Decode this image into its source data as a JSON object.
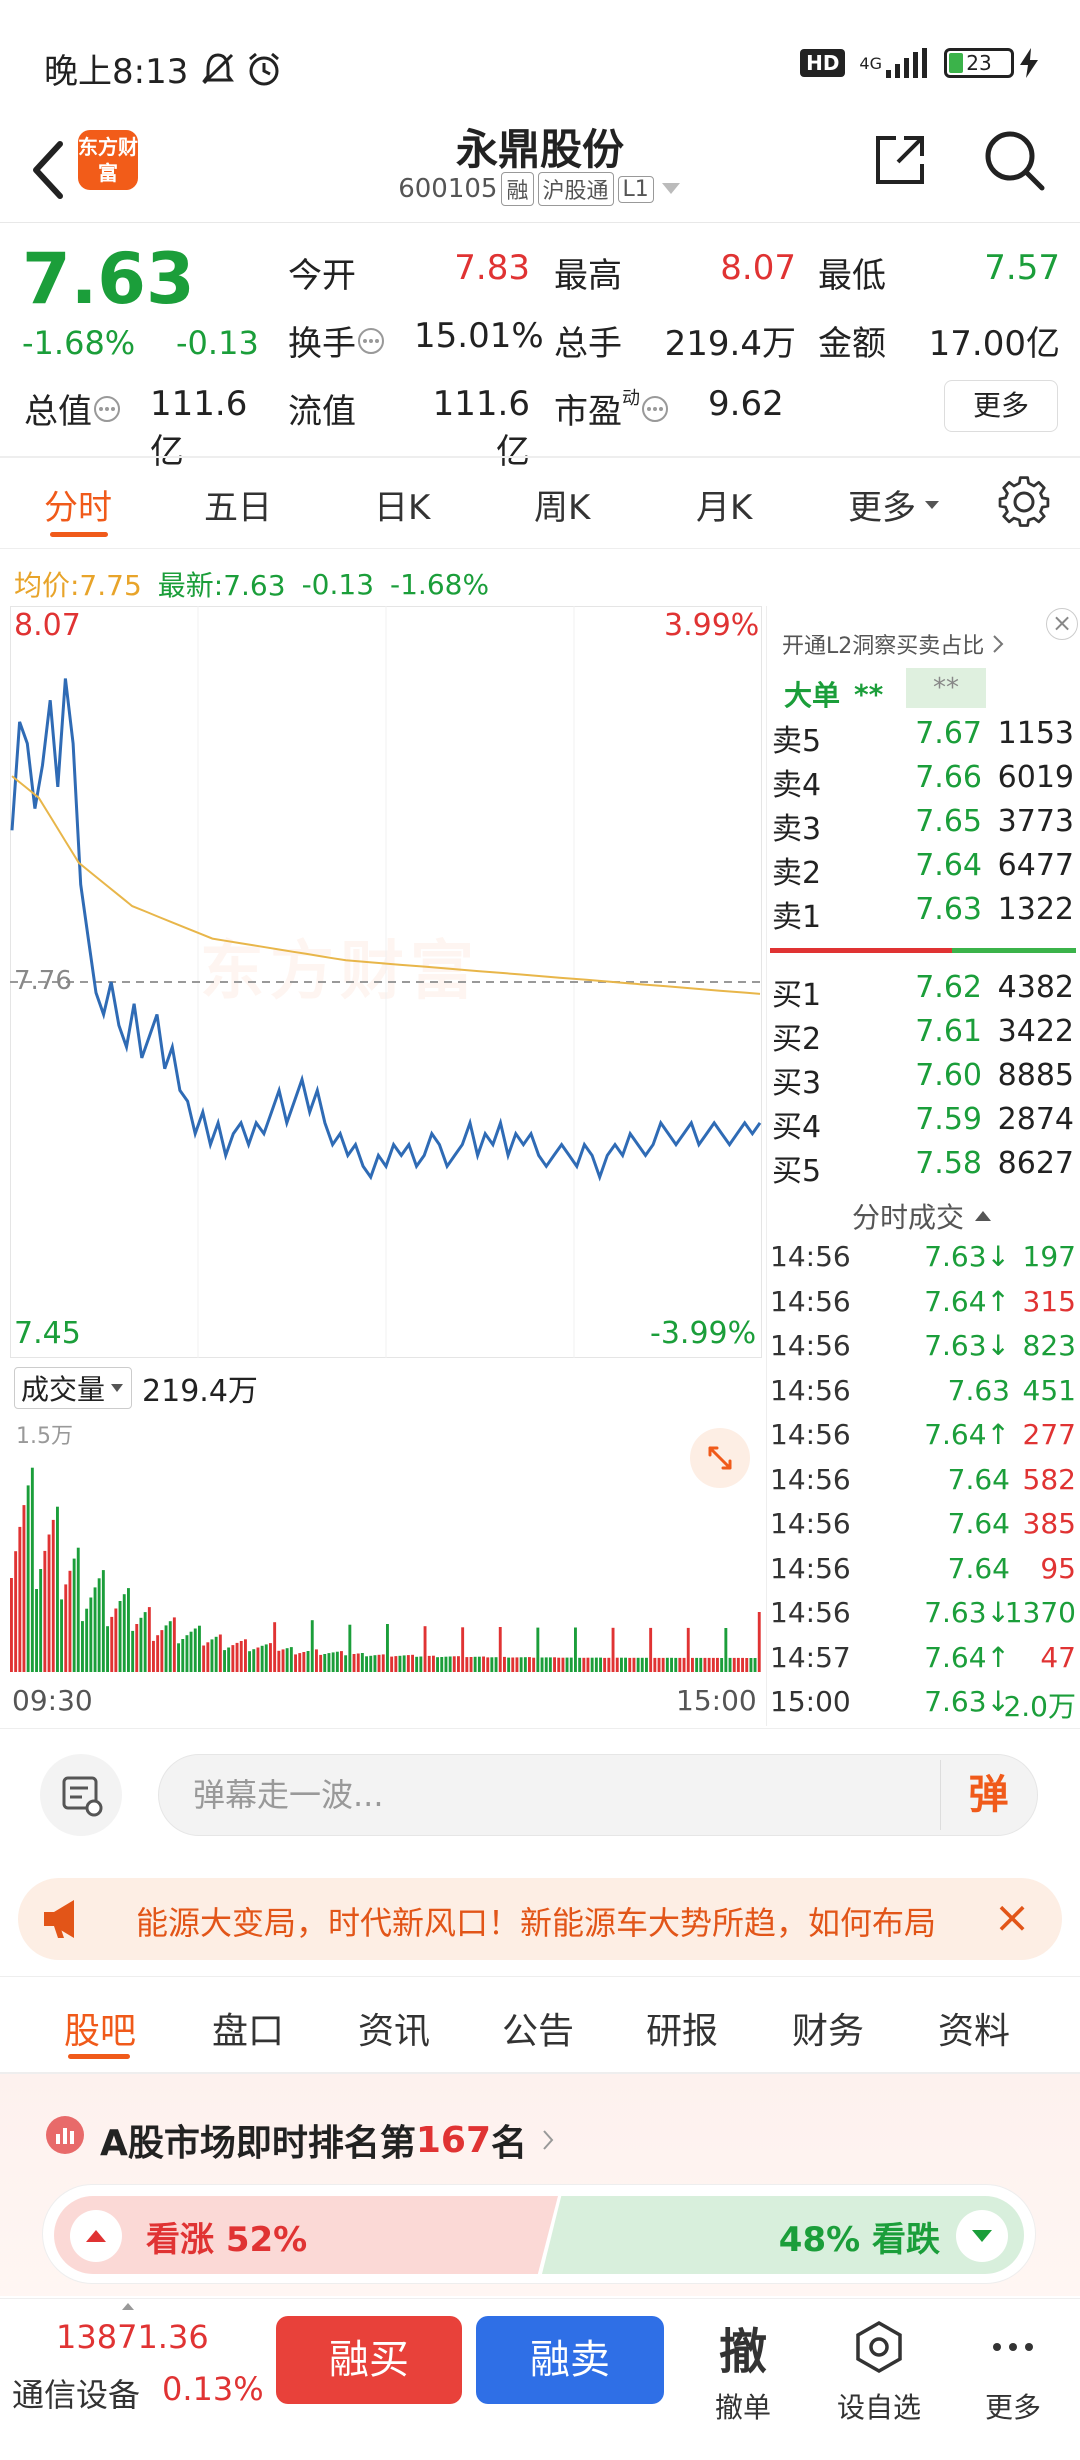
{
  "status_bar": {
    "time": "晚上8:13",
    "network": "4G",
    "hd": "HD",
    "battery": "23",
    "battery_level": 0.23
  },
  "header": {
    "logo": "东方财富",
    "stock_name": "永鼎股份",
    "stock_code": "600105",
    "tags": [
      "融",
      "沪股通",
      "L1"
    ]
  },
  "quote": {
    "price": "7.63",
    "change_pct": "-1.68%",
    "change": "-0.13",
    "fields": [
      {
        "label": "今开",
        "value": "7.83",
        "color": "red"
      },
      {
        "label": "最高",
        "value": "8.07",
        "color": "red"
      },
      {
        "label": "最低",
        "value": "7.57",
        "color": "green"
      },
      {
        "label": "换手",
        "value": "15.01%",
        "color": "black"
      },
      {
        "label": "总手",
        "value": "219.4万",
        "color": "black"
      },
      {
        "label": "金额",
        "value": "17.00亿",
        "color": "black"
      },
      {
        "label": "总值",
        "value": "111.6亿",
        "color": "black"
      },
      {
        "label": "流值",
        "value": "111.6亿",
        "color": "black"
      },
      {
        "label": "市盈",
        "value": "9.62",
        "color": "black"
      }
    ],
    "pe_superscript": "动",
    "more_label": "更多"
  },
  "period_tabs": [
    "分时",
    "五日",
    "日K",
    "周K",
    "月K",
    "更多"
  ],
  "info_line": {
    "avg": "均价:7.75",
    "latest": "最新:7.63",
    "change": "-0.13",
    "change_pct": "-1.68%"
  },
  "chart_data": {
    "type": "line",
    "title": "",
    "xlabel": "",
    "ylabel": "",
    "ylim": [
      7.45,
      8.07
    ],
    "prev_close": "7.76",
    "y_top_label": "8.07",
    "y_bottom_label": "7.45",
    "pct_top_label": "3.99%",
    "pct_bottom_label": "-3.99%",
    "x_start_label": "09:30",
    "x_end_label": "15:00",
    "watermark": "东方财富",
    "series": [
      {
        "values": [
          7.9,
          8.0,
          7.98,
          7.92,
          7.96,
          8.02,
          7.94,
          8.04,
          7.98,
          7.85,
          7.8,
          7.75,
          7.73,
          7.76,
          7.72,
          7.7,
          7.74,
          7.69,
          7.71,
          7.73,
          7.68,
          7.7,
          7.66,
          7.65,
          7.62,
          7.64,
          7.61,
          7.63,
          7.6,
          7.62,
          7.63,
          7.61,
          7.63,
          7.62,
          7.64,
          7.66,
          7.63,
          7.65,
          7.67,
          7.64,
          7.66,
          7.63,
          7.61,
          7.62,
          7.6,
          7.61,
          7.59,
          7.58,
          7.6,
          7.59,
          7.61,
          7.6,
          7.61,
          7.59,
          7.6,
          7.62,
          7.61,
          7.59,
          7.6,
          7.61,
          7.63,
          7.6,
          7.62,
          7.61,
          7.63,
          7.6,
          7.62,
          7.61,
          7.62,
          7.6,
          7.59,
          7.6,
          7.61,
          7.6,
          7.59,
          7.61,
          7.6,
          7.58,
          7.6,
          7.61,
          7.6,
          7.62,
          7.61,
          7.6,
          7.61,
          7.63,
          7.62,
          7.61,
          7.62,
          7.63,
          7.61,
          7.62,
          7.63,
          7.62,
          7.61,
          7.62,
          7.63,
          7.62,
          7.63
        ]
      },
      {
        "values": [
          7.95,
          7.94,
          7.93,
          7.91,
          7.89,
          7.87,
          7.86,
          7.85,
          7.84,
          7.83,
          7.825,
          7.82,
          7.815,
          7.81,
          7.805,
          7.8,
          7.798,
          7.796,
          7.794,
          7.792,
          7.79,
          7.788,
          7.786,
          7.784,
          7.782,
          7.78,
          7.779,
          7.778,
          7.777,
          7.776,
          7.775,
          7.774,
          7.773,
          7.772,
          7.771,
          7.77,
          7.769,
          7.768,
          7.767,
          7.766,
          7.765,
          7.764,
          7.763,
          7.762,
          7.761,
          7.76,
          7.759,
          7.758,
          7.757,
          7.756,
          7.755,
          7.754,
          7.753,
          7.752,
          7.751,
          7.75,
          7.749
        ]
      }
    ]
  },
  "volume": {
    "label": "成交量",
    "total": "219.4万",
    "max_label": "1.5万"
  },
  "order_book": {
    "title": "开通L2洞察买卖占比",
    "big_order_label": "大单",
    "big_order_value": "**",
    "big_order_box": "**",
    "asks": [
      {
        "label": "卖5",
        "price": "7.67",
        "vol": "1153"
      },
      {
        "label": "卖4",
        "price": "7.66",
        "vol": "6019"
      },
      {
        "label": "卖3",
        "price": "7.65",
        "vol": "3773"
      },
      {
        "label": "卖2",
        "price": "7.64",
        "vol": "6477"
      },
      {
        "label": "卖1",
        "price": "7.63",
        "vol": "1322"
      }
    ],
    "bids": [
      {
        "label": "买1",
        "price": "7.62",
        "vol": "4382"
      },
      {
        "label": "买2",
        "price": "7.61",
        "vol": "3422"
      },
      {
        "label": "买3",
        "price": "7.60",
        "vol": "8885"
      },
      {
        "label": "买4",
        "price": "7.59",
        "vol": "2874"
      },
      {
        "label": "买5",
        "price": "7.58",
        "vol": "8627"
      }
    ],
    "ticks_title": "分时成交",
    "ticks": [
      {
        "time": "14:56",
        "price": "7.63↓",
        "vol": "197",
        "dir": "down"
      },
      {
        "time": "14:56",
        "price": "7.64↑",
        "vol": "315",
        "dir": "up"
      },
      {
        "time": "14:56",
        "price": "7.63↓",
        "vol": "823",
        "dir": "down"
      },
      {
        "time": "14:56",
        "price": "7.63",
        "vol": "451",
        "dir": "down"
      },
      {
        "time": "14:56",
        "price": "7.64↑",
        "vol": "277",
        "dir": "up"
      },
      {
        "time": "14:56",
        "price": "7.64",
        "vol": "582",
        "dir": "up"
      },
      {
        "time": "14:56",
        "price": "7.64",
        "vol": "385",
        "dir": "up"
      },
      {
        "time": "14:56",
        "price": "7.64",
        "vol": "95",
        "dir": "up"
      },
      {
        "time": "14:56",
        "price": "7.63↓",
        "vol": "1370",
        "dir": "down"
      },
      {
        "time": "14:57",
        "price": "7.64↑",
        "vol": "47",
        "dir": "up"
      },
      {
        "time": "15:00",
        "price": "7.63↓",
        "vol": "2.0万",
        "dir": "down"
      }
    ]
  },
  "barrage": {
    "placeholder": "弹幕走一波...",
    "button": "弹"
  },
  "banner": {
    "text": "能源大变局，时代新风口！新能源车大势所趋，如何布局"
  },
  "sub_tabs": [
    "股吧",
    "盘口",
    "资讯",
    "公告",
    "研报",
    "财务",
    "资料"
  ],
  "ranking": {
    "prefix": "A股市场即时排名第",
    "rank": "167",
    "suffix": "名"
  },
  "vote": {
    "up_label": "看涨 52%",
    "down_label": "48% 看跌",
    "up_share": 0.52
  },
  "bottom_bar": {
    "index_value": "13871.36",
    "index_name": "通信设备",
    "index_change": "0.13%",
    "buy_label": "融买",
    "sell_label": "融卖",
    "withdraw_label": "撤单",
    "withdraw_glyph": "撤",
    "watchlist_label": "设自选",
    "more_label": "更多"
  },
  "colors": {
    "up": "#e03333",
    "down": "#1b9e3a",
    "accent": "#f05a1a",
    "price_line": "#2f6bb5",
    "avg_line": "#e8b64a"
  }
}
